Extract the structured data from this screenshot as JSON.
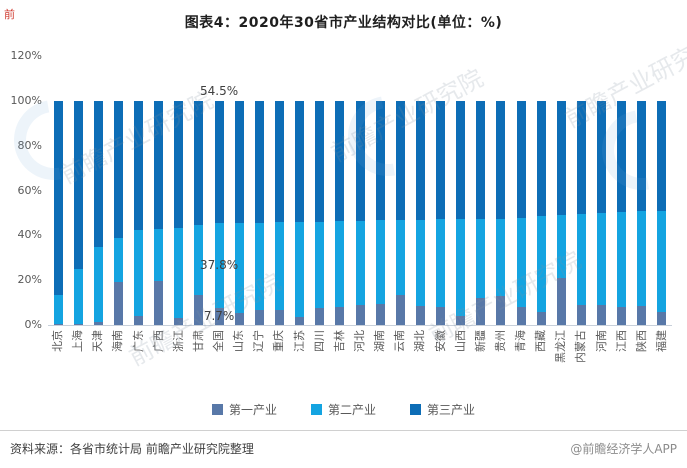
{
  "title": "图表4：2020年30省市产业结构对比(单位：%)",
  "watermark": {
    "text": "前瞻产业研究院",
    "corner_mark": "前"
  },
  "chart_data": {
    "type": "bar",
    "stacked": true,
    "percent_stacked": true,
    "unit": "%",
    "title": "图表4：2020年30省市产业结构对比(单位：%)",
    "categories": [
      "北京",
      "上海",
      "天津",
      "海南",
      "广东",
      "广西",
      "浙江",
      "甘肃",
      "全国",
      "山东",
      "辽宁",
      "重庆",
      "江苏",
      "四川",
      "吉林",
      "河北",
      "湖南",
      "云南",
      "湖北",
      "安徽",
      "山西",
      "新疆",
      "贵州",
      "青海",
      "西藏",
      "黑龙江",
      "内蒙古",
      "河南",
      "江西",
      "陕西",
      "福建"
    ],
    "series": [
      {
        "name": "第一产业",
        "color": "#5878A8",
        "values": [
          0.4,
          0.3,
          1.5,
          19.0,
          4.0,
          19.5,
          3.3,
          13.2,
          7.7,
          5.5,
          6.5,
          6.5,
          3.5,
          7.5,
          8.0,
          9.0,
          9.5,
          13.5,
          8.5,
          8.0,
          4.0,
          12.0,
          13.0,
          8.0,
          6.0,
          21.0,
          9.0,
          9.0,
          8.0,
          8.5,
          6.0
        ]
      },
      {
        "name": "第二产业",
        "color": "#14A4E1",
        "values": [
          13.0,
          24.5,
          33.5,
          20.0,
          38.5,
          23.5,
          40.2,
          31.6,
          37.8,
          40.2,
          39.2,
          39.5,
          42.6,
          38.6,
          38.3,
          37.5,
          37.3,
          33.5,
          38.5,
          39.2,
          43.2,
          35.3,
          34.5,
          39.9,
          42.5,
          28.0,
          40.5,
          41.0,
          42.5,
          42.5,
          45.0
        ]
      },
      {
        "name": "第三产业",
        "color": "#0D6DB6",
        "values": [
          86.6,
          75.2,
          65.0,
          61.0,
          57.5,
          57.0,
          56.5,
          55.2,
          54.5,
          54.3,
          54.3,
          54.0,
          53.9,
          53.9,
          53.7,
          53.5,
          53.2,
          53.0,
          53.0,
          52.8,
          52.8,
          52.7,
          52.5,
          52.1,
          51.5,
          51.0,
          50.5,
          50.0,
          49.5,
          49.0,
          49.0
        ]
      }
    ],
    "y_axis": {
      "tick_labels": [
        "0%",
        "20%",
        "40%",
        "60%",
        "80%",
        "100%",
        "120%"
      ],
      "min": 0,
      "max": 120,
      "grid": false
    },
    "legend": {
      "position": "bottom",
      "entries": [
        "第一产业",
        "第二产业",
        "第三产业"
      ]
    },
    "data_labels": {
      "category": "全国",
      "第一产业": "7.7%",
      "第二产业": "37.8%",
      "第三产业": "54.5%"
    }
  },
  "footer": {
    "source": "资料来源：各省市统计局 前瞻产业研究院整理",
    "brand": "@前瞻经济学人APP"
  }
}
